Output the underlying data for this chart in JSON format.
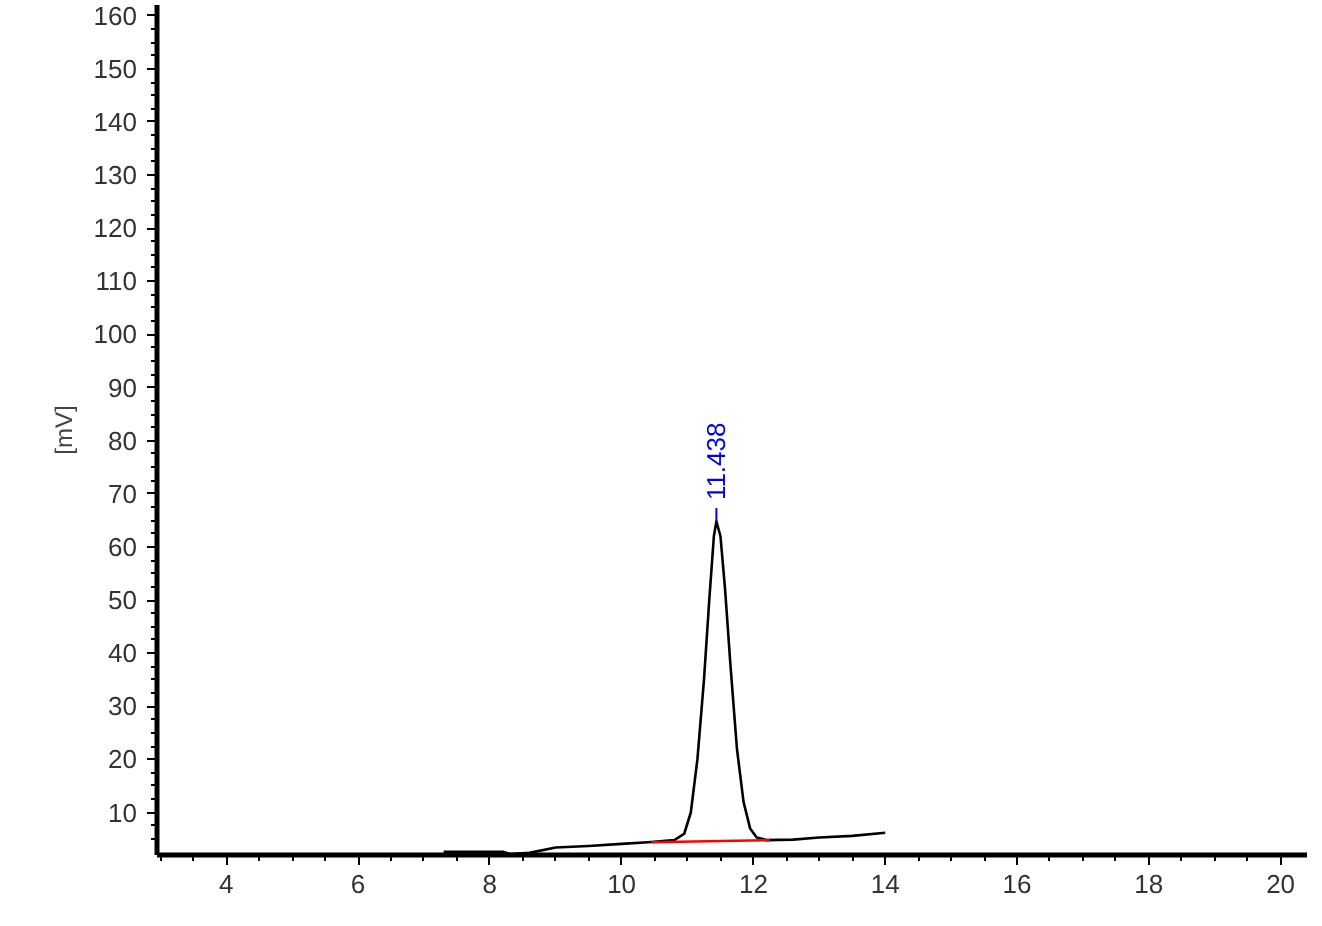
{
  "chart_data": {
    "type": "line",
    "ylabel": "[mV]",
    "xlim": [
      2.95,
      20.4
    ],
    "ylim": [
      2,
      162
    ],
    "xticks": [
      4,
      6,
      8,
      10,
      12,
      14,
      16,
      18,
      20
    ],
    "yticks": [
      10,
      20,
      30,
      40,
      50,
      60,
      70,
      80,
      90,
      100,
      110,
      120,
      130,
      140,
      150,
      160
    ],
    "grid": false,
    "marker": "none",
    "line_style": "solid",
    "series": [
      {
        "color": "#000000",
        "x": [
          7.3,
          8.2,
          8.3,
          8.6,
          9.0,
          9.5,
          10.0,
          10.4,
          10.8,
          10.95,
          11.05,
          11.15,
          11.25,
          11.33,
          11.4,
          11.438,
          11.5,
          11.57,
          11.65,
          11.75,
          11.85,
          11.95,
          12.05,
          12.2,
          12.6,
          13.0,
          13.5,
          14.0
        ],
        "values": [
          2.6,
          2.6,
          2.2,
          2.4,
          3.4,
          3.7,
          4.1,
          4.4,
          4.8,
          6,
          10,
          20,
          35,
          50,
          62,
          64.8,
          62,
          52,
          38,
          22,
          12,
          7,
          5.3,
          4.8,
          4.9,
          5.3,
          5.6,
          6.2
        ]
      },
      {
        "color": "#ff0000",
        "x": [
          10.45,
          12.25
        ],
        "values": [
          4.4,
          4.8
        ]
      }
    ],
    "annotations": [
      {
        "text": "11.438",
        "x": 11.438,
        "y": 64.8
      }
    ]
  }
}
